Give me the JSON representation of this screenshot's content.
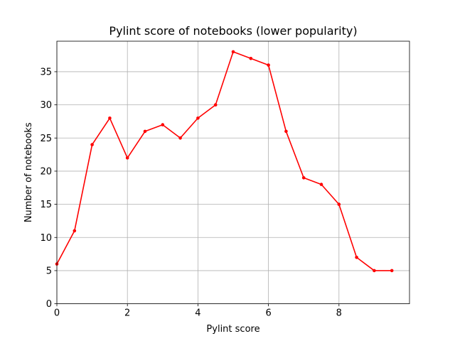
{
  "chart_data": {
    "type": "line",
    "title": "Pylint score of notebooks (lower popularity)",
    "xlabel": "Pylint score",
    "ylabel": "Number of notebooks",
    "xlim": [
      0,
      10
    ],
    "ylim": [
      0,
      39.6
    ],
    "xticks": [
      0,
      2,
      4,
      6,
      8
    ],
    "yticks": [
      0,
      5,
      10,
      15,
      20,
      25,
      30,
      35
    ],
    "grid": true,
    "series": [
      {
        "color": "#ff0000",
        "marker": "circle",
        "x": [
          0,
          0.5,
          1,
          1.5,
          2,
          2.5,
          3,
          3.5,
          4,
          4.5,
          5,
          5.5,
          6,
          6.5,
          7,
          7.5,
          8,
          8.5,
          9,
          9.5
        ],
        "y": [
          6,
          11,
          24,
          28,
          22,
          26,
          27,
          25,
          28,
          30,
          38,
          37,
          36,
          26,
          19,
          18,
          15,
          7,
          5,
          5
        ]
      }
    ]
  }
}
